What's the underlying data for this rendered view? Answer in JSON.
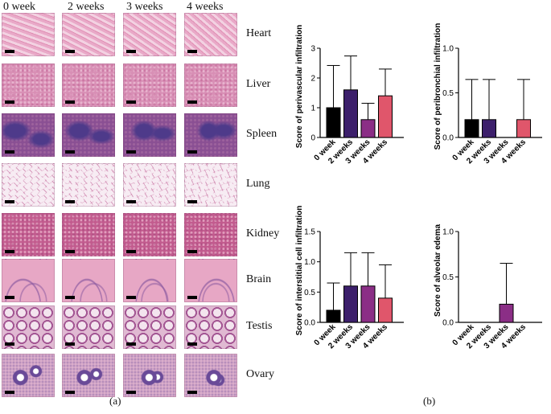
{
  "panel_a": {
    "label": "(a)",
    "column_headers": [
      "0 week",
      "2 weeks",
      "3 weeks",
      "4 weeks"
    ],
    "tissues": [
      {
        "name": "Heart",
        "colors": [
          "#e9a9c8",
          "#cf5c8e",
          "#f3d2e2"
        ],
        "pattern": "fiber"
      },
      {
        "name": "Liver",
        "colors": [
          "#d88fb5",
          "#b74d85",
          "#e8b5cf"
        ],
        "pattern": "speckle"
      },
      {
        "name": "Spleen",
        "colors": [
          "#8a4f93",
          "#4e3a8a",
          "#b277a7"
        ],
        "pattern": "blotch"
      },
      {
        "name": "Lung",
        "colors": [
          "#f7ecf3",
          "#c2679a",
          "#e9c3d8"
        ],
        "pattern": "mesh"
      },
      {
        "name": "Kidney",
        "colors": [
          "#c25b8e",
          "#9c3c74",
          "#e29fbe"
        ],
        "pattern": "speckle"
      },
      {
        "name": "Brain",
        "colors": [
          "#e7a7c5",
          "#8b5aa0",
          "#f0c6da"
        ],
        "pattern": "curve"
      },
      {
        "name": "Testis",
        "colors": [
          "#f3e4ee",
          "#a45794",
          "#e0b9d2"
        ],
        "pattern": "tubules"
      },
      {
        "name": "Ovary",
        "colors": [
          "#ddb0cc",
          "#6a4a98",
          "#efd6e5"
        ],
        "pattern": "follicles"
      }
    ]
  },
  "panel_b": {
    "label": "(b)"
  },
  "chart_data": [
    {
      "type": "bar",
      "ylabel": "Score of perivascular infiltration",
      "categories": [
        "0 week",
        "2 weeks",
        "3 weeks",
        "4 weeks"
      ],
      "values": [
        1.0,
        1.6,
        0.6,
        1.4
      ],
      "errors": [
        1.42,
        1.14,
        0.55,
        0.9
      ],
      "colors": [
        "#000000",
        "#3c1f6b",
        "#8b2e86",
        "#e0566b"
      ],
      "ylim": [
        0,
        3
      ],
      "yticks": [
        "0",
        "1",
        "2",
        "3"
      ]
    },
    {
      "type": "bar",
      "ylabel": "Score of peribronchial infiltration",
      "categories": [
        "0 week",
        "2 weeks",
        "3 weeks",
        "4 weeks"
      ],
      "values": [
        0.2,
        0.2,
        0.0,
        0.2
      ],
      "errors": [
        0.45,
        0.45,
        0.0,
        0.45
      ],
      "colors": [
        "#000000",
        "#3c1f6b",
        "#8b2e86",
        "#e0566b"
      ],
      "ylim": [
        0,
        1.0
      ],
      "yticks": [
        "0.0",
        "0.5",
        "1.0"
      ]
    },
    {
      "type": "bar",
      "ylabel": "Score of interstitial cell infiltration",
      "categories": [
        "0 week",
        "2 weeks",
        "3 weeks",
        "4 weeks"
      ],
      "values": [
        0.2,
        0.6,
        0.6,
        0.4
      ],
      "errors": [
        0.45,
        0.55,
        0.55,
        0.55
      ],
      "colors": [
        "#000000",
        "#3c1f6b",
        "#8b2e86",
        "#e0566b"
      ],
      "ylim": [
        0,
        1.5
      ],
      "yticks": [
        "0.0",
        "0.5",
        "1.0",
        "1.5"
      ]
    },
    {
      "type": "bar",
      "ylabel": "Score of alveolar edema",
      "categories": [
        "0 week",
        "2 weeks",
        "3 weeks",
        "4 weeks"
      ],
      "values": [
        0.0,
        0.0,
        0.2,
        0.0
      ],
      "errors": [
        0.0,
        0.0,
        0.45,
        0.0
      ],
      "colors": [
        "#000000",
        "#3c1f6b",
        "#8b2e86",
        "#e0566b"
      ],
      "ylim": [
        0,
        1.0
      ],
      "yticks": [
        "0.0",
        "0.5",
        "1.0"
      ]
    }
  ]
}
